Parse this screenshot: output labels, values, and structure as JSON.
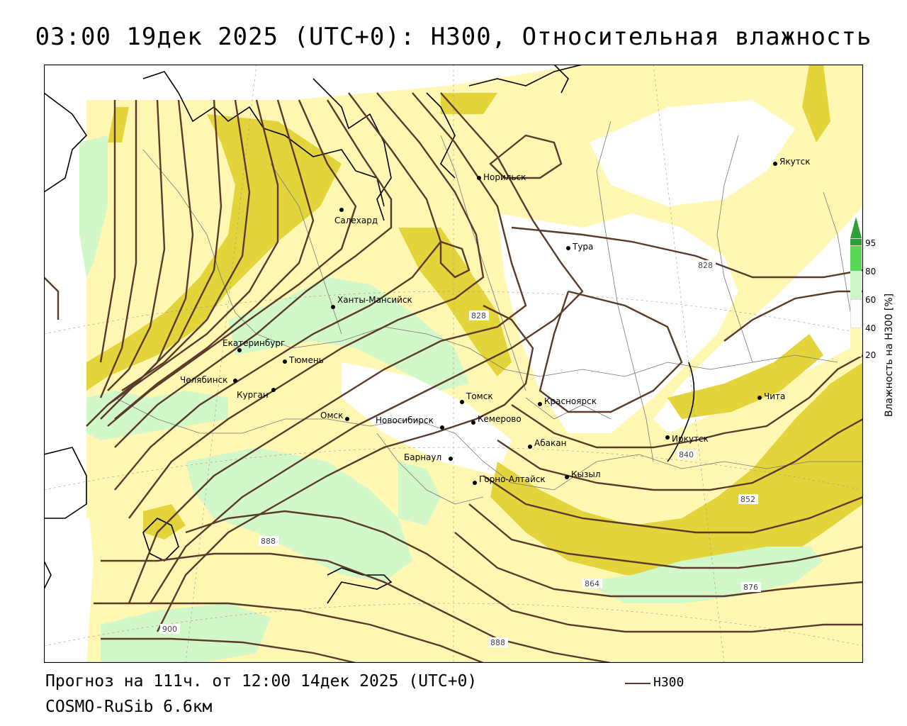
{
  "title": "03:00 19дек 2025 (UTC+0): H300, Относительная влажность",
  "footer": {
    "forecast": "Прогноз на 111ч. от 12:00 14дек 2025 (UTC+0)",
    "model": "COSMO-RuSib 6.6км"
  },
  "legend": {
    "line_label": "H300",
    "line_color": "#5a3a2a"
  },
  "colorbar": {
    "title": "Влажность на H300 [%]",
    "ticks": [
      "20",
      "40",
      "60",
      "80",
      "95"
    ],
    "colors": [
      "#ffffff",
      "#fff8b0",
      "#ffffff",
      "#d0f5c8",
      "#58d858",
      "#2e9e36"
    ]
  },
  "fill_colors": {
    "light_yellow": "#fff7b2",
    "dark_yellow": "#e2d43a",
    "light_green": "#d2f7c8"
  },
  "cities": [
    {
      "name": "Норильск"
    },
    {
      "name": "Якутск"
    },
    {
      "name": "Салехард"
    },
    {
      "name": "Тура"
    },
    {
      "name": "Ханты-Мансийск"
    },
    {
      "name": "Екатеринбург"
    },
    {
      "name": "Тюмень"
    },
    {
      "name": "Челябинск"
    },
    {
      "name": "Курган"
    },
    {
      "name": "Омск"
    },
    {
      "name": "Новосибирск"
    },
    {
      "name": "Томск"
    },
    {
      "name": "Кемерово"
    },
    {
      "name": "Красноярск"
    },
    {
      "name": "Абакан"
    },
    {
      "name": "Барнаул"
    },
    {
      "name": "Горно-Алтайск"
    },
    {
      "name": "Кызыл"
    },
    {
      "name": "Иркутск"
    },
    {
      "name": "Чита"
    }
  ],
  "isoline_labels": [
    "828",
    "828",
    "840",
    "852",
    "864",
    "876",
    "888",
    "888",
    "900"
  ]
}
